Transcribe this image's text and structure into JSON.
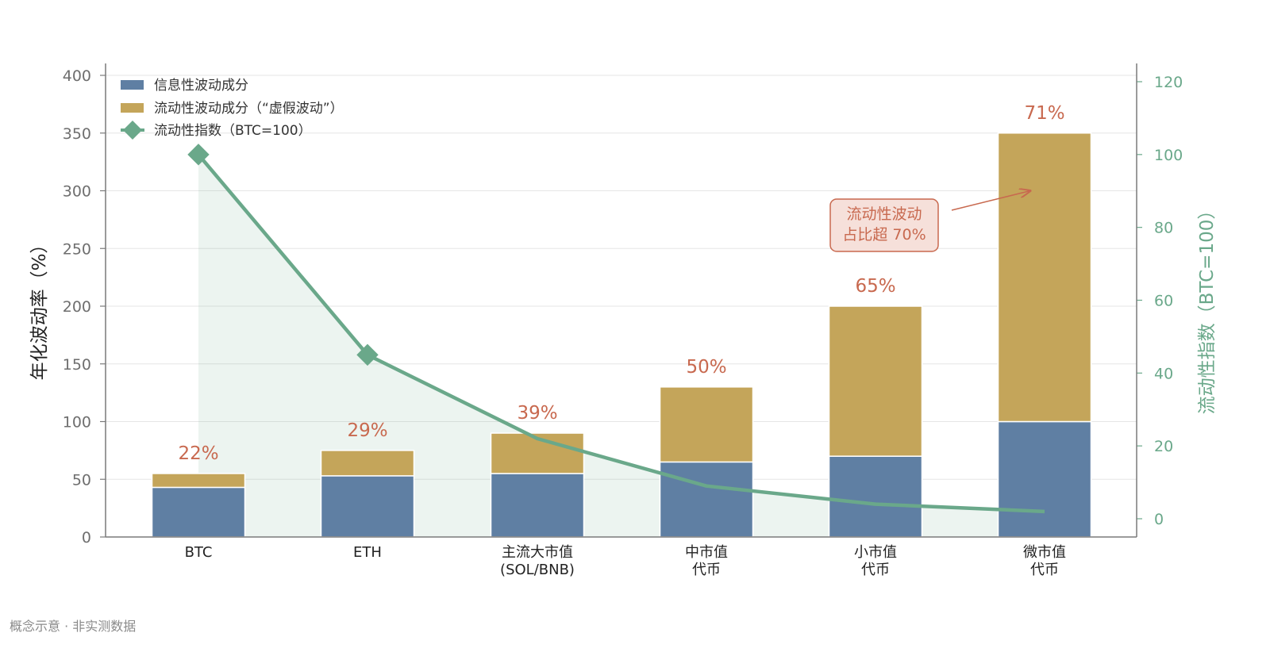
{
  "chart_data": {
    "type": "bar",
    "stacked": true,
    "categories": [
      [
        "BTC"
      ],
      [
        "ETH"
      ],
      [
        "主流大市值",
        "(SOL/BNB)"
      ],
      [
        "中市值",
        "代币"
      ],
      [
        "小市值",
        "代币"
      ],
      [
        "微市值",
        "代币"
      ]
    ],
    "series": [
      {
        "name": "信息性波动成分",
        "type": "bar",
        "axis": "left",
        "color": "#5f7fa3",
        "values": [
          43,
          53,
          55,
          65,
          70,
          100
        ]
      },
      {
        "name": "流动性波动成分（“虚假波动”）",
        "type": "bar",
        "axis": "left",
        "color": "#c4a55a",
        "values": [
          12,
          22,
          35,
          65,
          130,
          250
        ]
      },
      {
        "name": "流动性指数（BTC=100）",
        "type": "line",
        "axis": "right",
        "color": "#6aa88a",
        "marker": "diamond",
        "values": [
          100,
          45,
          22,
          9,
          4,
          2
        ]
      }
    ],
    "bar_labels": [
      "22%",
      "29%",
      "39%",
      "50%",
      "65%",
      "71%"
    ],
    "ylabel": "年化波动率（%）",
    "ylabel_right": "流动性指数（BTC=100）",
    "ylim": [
      0,
      400
    ],
    "yticks": [
      0,
      50,
      100,
      150,
      200,
      250,
      300,
      350,
      400
    ],
    "ylim_right": [
      -3,
      123
    ],
    "yticks_right": [
      0,
      20,
      40,
      60,
      80,
      100,
      120
    ],
    "grid": true,
    "legend_position": "top-left",
    "annotation": {
      "lines": [
        "流动性波动",
        "占比超 70%"
      ],
      "target_category": 5,
      "target_value": 300
    },
    "colors": {
      "axis": "#7a7a7a",
      "grid": "#e6e6e6",
      "label_accent": "#c8694f",
      "annotation_fill": "#f6e0da"
    }
  },
  "footer": "概念示意 · 非实测数据"
}
